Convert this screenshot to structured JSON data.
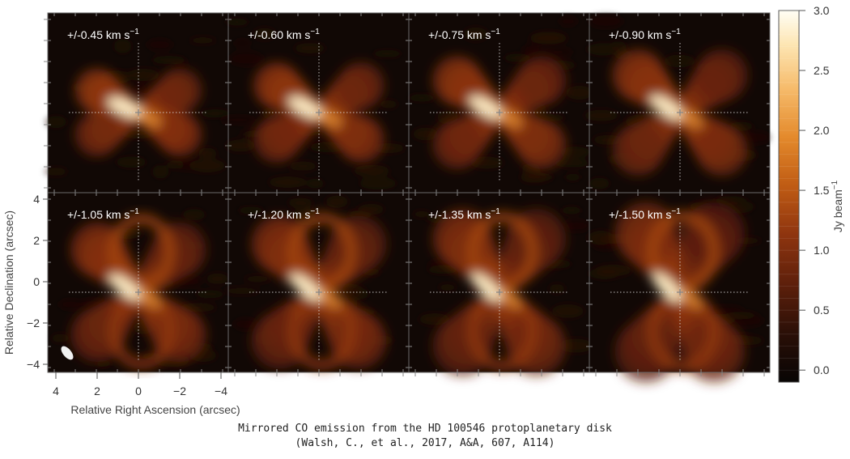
{
  "chart_data": {
    "type": "heatmap",
    "panels": [
      {
        "label": "+/-0.45 km s",
        "velocity_km_s": 0.45
      },
      {
        "label": "+/-0.60 km s",
        "velocity_km_s": 0.6
      },
      {
        "label": "+/-0.75 km s",
        "velocity_km_s": 0.75
      },
      {
        "label": "+/-0.90 km s",
        "velocity_km_s": 0.9
      },
      {
        "label": "+/-1.05 km s",
        "velocity_km_s": 1.05
      },
      {
        "label": "+/-1.20 km s",
        "velocity_km_s": 1.2
      },
      {
        "label": "+/-1.35 km s",
        "velocity_km_s": 1.35
      },
      {
        "label": "+/-1.50 km s",
        "velocity_km_s": 1.5
      }
    ],
    "panel_label_unit_superscript": "−1",
    "xlabel": "Relative Right Ascension (arcsec)",
    "ylabel": "Relative Declination (arcsec)",
    "xticks": [
      "4",
      "2",
      "0",
      "−2",
      "−4"
    ],
    "xtick_values": [
      4,
      2,
      0,
      -2,
      -4
    ],
    "yticks": [
      "4",
      "2",
      "0",
      "−2",
      "−4"
    ],
    "ytick_values": [
      4,
      2,
      0,
      -2,
      -4
    ],
    "xlim": [
      4.3,
      -4.3
    ],
    "ylim": [
      -4.3,
      4.3
    ],
    "colorbar": {
      "label": "Jy beam",
      "label_superscript": "−1",
      "ticks": [
        "0.0",
        "0.5",
        "1.0",
        "1.5",
        "2.0",
        "2.5",
        "3.0"
      ],
      "tick_values": [
        0.0,
        0.5,
        1.0,
        1.5,
        2.0,
        2.5,
        3.0
      ],
      "range": [
        -0.1,
        3.0
      ],
      "colormap": [
        "#080504",
        "#2a0f07",
        "#5c1f0b",
        "#8f350f",
        "#c05c14",
        "#e48a2c",
        "#f6bb6b",
        "#fde6b4",
        "#fffef5"
      ]
    }
  },
  "caption": {
    "line1": "Mirrored CO emission from the HD 100546 protoplanetary disk",
    "line2": "(Walsh, C., et al., 2017, A&A, 607, A114)"
  }
}
